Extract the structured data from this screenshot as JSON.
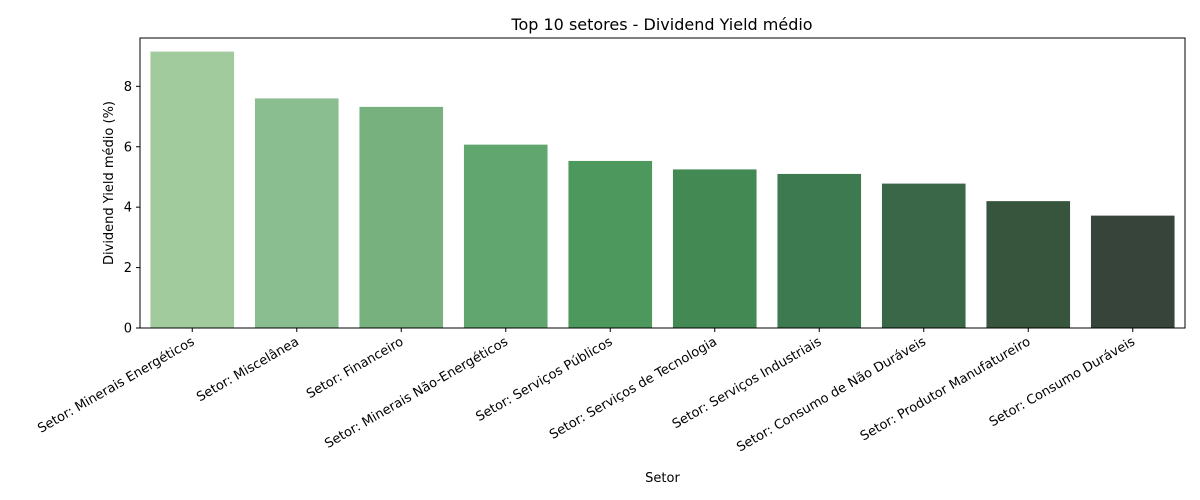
{
  "chart_data": {
    "type": "bar",
    "title": "Top 10 setores - Dividend Yield médio",
    "xlabel": "Setor",
    "ylabel": "Dividend Yield médio (%)",
    "ylim": [
      0,
      9.6
    ],
    "yticks": [
      0,
      2,
      4,
      6,
      8
    ],
    "grid": false,
    "categories": [
      "Setor: Minerais Energéticos",
      "Setor: Miscelânea",
      "Setor: Financeiro",
      "Setor: Minerais Não-Energéticos",
      "Setor: Serviços Públicos",
      "Setor: Serviços de Tecnologia",
      "Setor: Serviços Industriais",
      "Setor: Consumo de Não Duráveis",
      "Setor: Produtor Manufatureiro",
      "Setor: Consumo Duráveis"
    ],
    "values": [
      9.15,
      7.6,
      7.32,
      6.07,
      5.53,
      5.25,
      5.1,
      4.78,
      4.2,
      3.72
    ],
    "colors": [
      "#a1cb9d",
      "#8abd8f",
      "#76b17e",
      "#62a66f",
      "#4c985d",
      "#428954",
      "#3e7a50",
      "#3a6748",
      "#37553d",
      "#36443a"
    ]
  }
}
